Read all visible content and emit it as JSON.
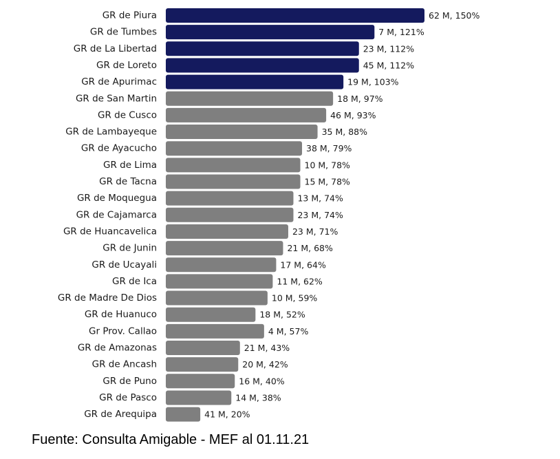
{
  "chart_data": {
    "type": "bar",
    "orientation": "horizontal",
    "title": "",
    "xlabel": "",
    "ylabel": "",
    "xlim": [
      0,
      150
    ],
    "grid": false,
    "legend": "none",
    "colors": {
      "highlight": "#141a5e",
      "default": "#7f7f7f",
      "text": "#1a1a1a"
    },
    "categories": [
      "GR de Piura",
      "GR de Tumbes",
      "GR de La Libertad",
      "GR de Loreto",
      "GR de Apurimac",
      "GR de San Martin",
      "GR de Cusco",
      "GR de Lambayeque",
      "GR de Ayacucho",
      "GR de Lima",
      "GR de Tacna",
      "GR de Moquegua",
      "GR de Cajamarca",
      "GR de Huancavelica",
      "GR de Junin",
      "GR de Ucayali",
      "GR de Ica",
      "GR de Madre De Dios",
      "GR de Huanuco",
      "Gr Prov. Callao",
      "GR de Amazonas",
      "GR de Ancash",
      "GR de Puno",
      "GR de Pasco",
      "GR de Arequipa"
    ],
    "values": [
      150,
      121,
      112,
      112,
      103,
      97,
      93,
      88,
      79,
      78,
      78,
      74,
      74,
      71,
      68,
      64,
      62,
      59,
      52,
      57,
      43,
      42,
      40,
      38,
      20
    ],
    "data_labels": [
      "62 M, 150%",
      "7 M, 121%",
      "23 M, 112%",
      "45 M, 112%",
      "19 M, 103%",
      "18 M, 97%",
      "46 M, 93%",
      "35 M, 88%",
      "38 M, 79%",
      "10 M, 78%",
      "15 M, 78%",
      "13 M, 74%",
      "23 M, 74%",
      "23 M, 71%",
      "21 M, 68%",
      "17 M, 64%",
      "11 M, 62%",
      "10 M, 59%",
      "18 M, 52%",
      "4 M, 57%",
      "21 M, 43%",
      "20 M, 42%",
      "16 M, 40%",
      "14 M, 38%",
      "41 M, 20%"
    ],
    "highlighted": [
      true,
      true,
      true,
      true,
      true,
      false,
      false,
      false,
      false,
      false,
      false,
      false,
      false,
      false,
      false,
      false,
      false,
      false,
      false,
      false,
      false,
      false,
      false,
      false,
      false
    ]
  },
  "footer": {
    "source": "Fuente: Consulta Amigable - MEF al 01.11.21"
  }
}
